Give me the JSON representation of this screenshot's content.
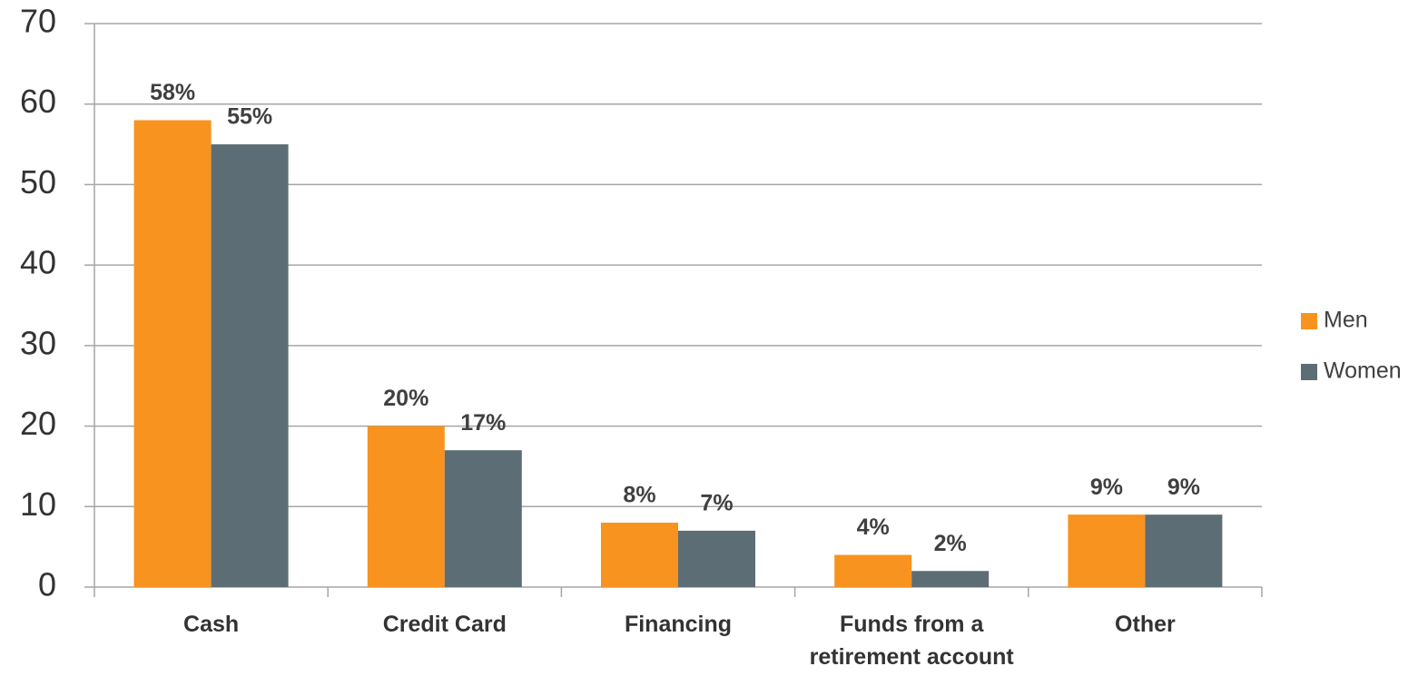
{
  "chart_data": {
    "type": "bar",
    "categories": [
      "Cash",
      "Credit Card",
      "Financing",
      "Funds from a retirement account",
      "Other"
    ],
    "series": [
      {
        "name": "Men",
        "color": "#f7931e",
        "values": [
          58,
          20,
          8,
          4,
          9
        ],
        "value_labels": [
          "58%",
          "20%",
          "8%",
          "4%",
          "9%"
        ]
      },
      {
        "name": "Women",
        "color": "#5d6d75",
        "values": [
          55,
          17,
          7,
          2,
          9
        ],
        "value_labels": [
          "55%",
          "17%",
          "7%",
          "2%",
          "9%"
        ]
      }
    ],
    "ylim": [
      0,
      70
    ],
    "yticks": [
      0,
      10,
      20,
      30,
      40,
      50,
      60,
      70
    ],
    "grid": true,
    "legend": "right"
  }
}
